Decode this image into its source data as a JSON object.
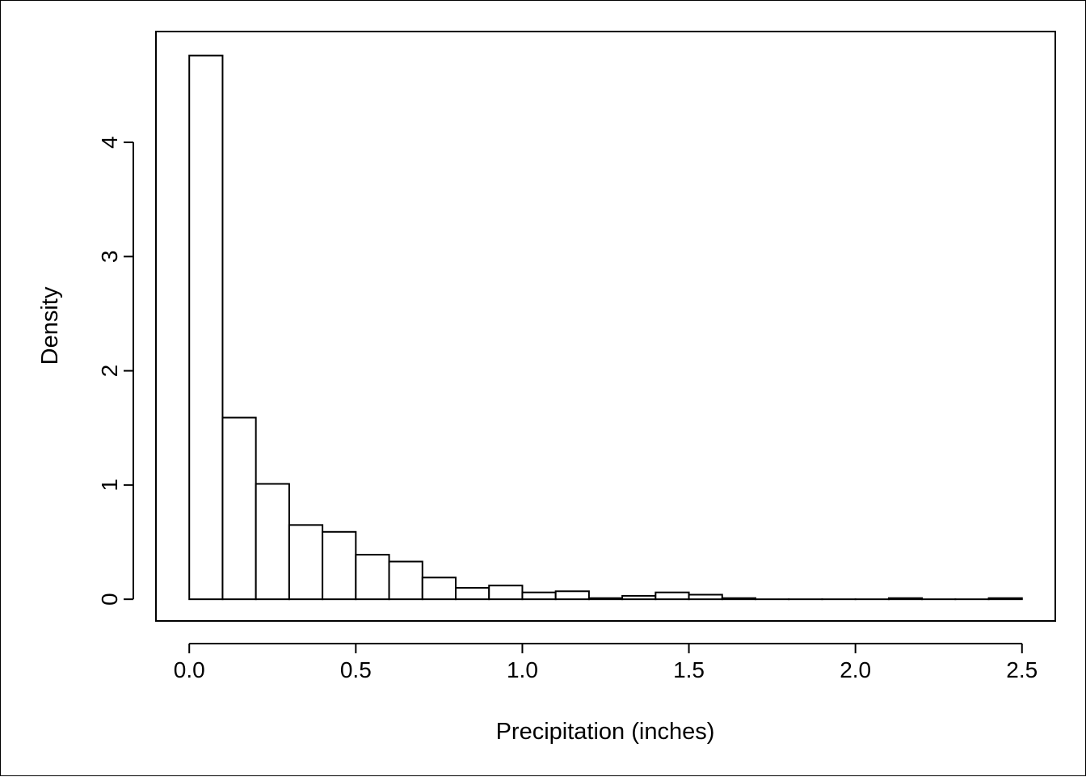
{
  "chart_data": {
    "type": "bar",
    "subtype": "histogram",
    "xlabel": "Precipitation (inches)",
    "ylabel": "Density",
    "xlim": [
      -0.1,
      2.6
    ],
    "ylim": [
      -0.19,
      4.97
    ],
    "x_ticks": [
      {
        "value": 0.0,
        "label": "0.0"
      },
      {
        "value": 0.5,
        "label": "0.5"
      },
      {
        "value": 1.0,
        "label": "1.0"
      },
      {
        "value": 1.5,
        "label": "1.5"
      },
      {
        "value": 2.0,
        "label": "2.0"
      },
      {
        "value": 2.5,
        "label": "2.5"
      }
    ],
    "y_ticks": [
      {
        "value": 0,
        "label": "0"
      },
      {
        "value": 1,
        "label": "1"
      },
      {
        "value": 2,
        "label": "2"
      },
      {
        "value": 3,
        "label": "3"
      },
      {
        "value": 4,
        "label": "4"
      }
    ],
    "bin_edges": [
      0.0,
      0.1,
      0.2,
      0.3,
      0.4,
      0.5,
      0.6,
      0.7,
      0.8,
      0.9,
      1.0,
      1.1,
      1.2,
      1.3,
      1.4,
      1.5,
      1.6,
      1.7,
      1.8,
      1.9,
      2.0,
      2.1,
      2.2,
      2.3,
      2.4,
      2.5
    ],
    "values": [
      4.76,
      1.59,
      1.01,
      0.65,
      0.59,
      0.39,
      0.33,
      0.19,
      0.1,
      0.12,
      0.06,
      0.07,
      0.01,
      0.03,
      0.06,
      0.04,
      0.01,
      0.0,
      0.0,
      0.0,
      0.0,
      0.01,
      0.0,
      0.0,
      0.01
    ],
    "grid": false,
    "legend": "none"
  }
}
